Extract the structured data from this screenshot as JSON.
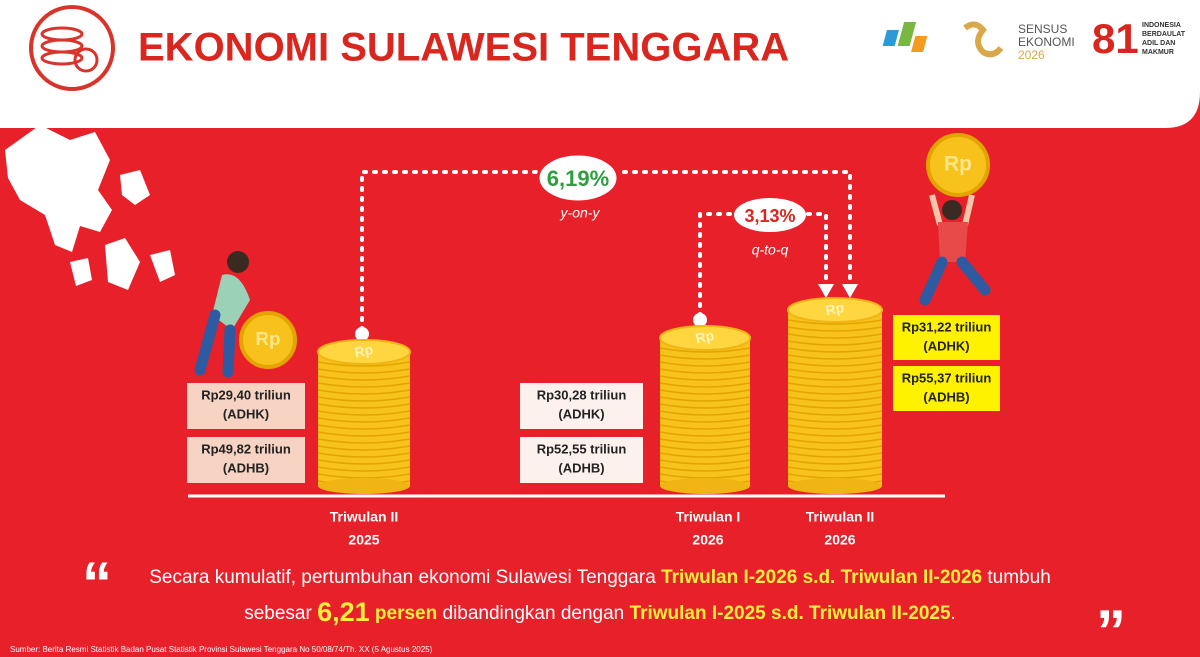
{
  "header": {
    "title": "EKONOMI SULAWESI TENGGARA",
    "logo_sensus": [
      "SENSUS",
      "EKONOMI",
      "2026"
    ],
    "logo_hut": "81",
    "logo_hut_text": [
      "INDONESIA",
      "BERDAULAT",
      "ADIL DAN",
      "MAKMUR"
    ]
  },
  "coin_label": "Rp",
  "growth": {
    "yoy": {
      "value": "6,19%",
      "label": "y-on-y"
    },
    "qtq": {
      "value": "3,13%",
      "label": "q-to-q"
    }
  },
  "periods": [
    {
      "name": "Triwulan II",
      "year": "2025",
      "adhk": "Rp29,40 triliun",
      "adhk_label": "(ADHK)",
      "adhb": "Rp49,82 triliun",
      "adhb_label": "(ADHB)"
    },
    {
      "name": "Triwulan I",
      "year": "2026",
      "adhk": "Rp30,28 triliun",
      "adhk_label": "(ADHK)",
      "adhb": "Rp52,55 triliun",
      "adhb_label": "(ADHB)"
    },
    {
      "name": "Triwulan II",
      "year": "2026",
      "adhk": "Rp31,22 triliun",
      "adhk_label": "(ADHK)",
      "adhb": "Rp55,37 triliun",
      "adhb_label": "(ADHB)"
    }
  ],
  "quote": {
    "open": "“",
    "close": "”",
    "lines": [
      [
        {
          "text": "Secara kumulatif, pertumbuhan ekonomi Sulawesi Tenggara ",
          "style": "normal"
        },
        {
          "text": "Triwulan I-2026 s.d. Triwulan II-2026",
          "style": "highlight"
        },
        {
          "text": " tumbuh",
          "style": "normal"
        }
      ],
      [
        {
          "text": "sebesar ",
          "style": "normal"
        },
        {
          "text": "6,21",
          "style": "big"
        },
        {
          "text": " persen",
          "style": "highlight"
        },
        {
          "text": " dibandingkan dengan ",
          "style": "normal"
        },
        {
          "text": "Triwulan I-2025 s.d. Triwulan II-2025",
          "style": "highlight"
        },
        {
          "text": ".",
          "style": "normal"
        }
      ]
    ]
  },
  "source": "Sumber: Berita Resmi Statistik Badan Pusat Statistik Provinsi Sulawesi Tenggara No 50/08/74/Th. XX (5 Agustus 2025)"
}
